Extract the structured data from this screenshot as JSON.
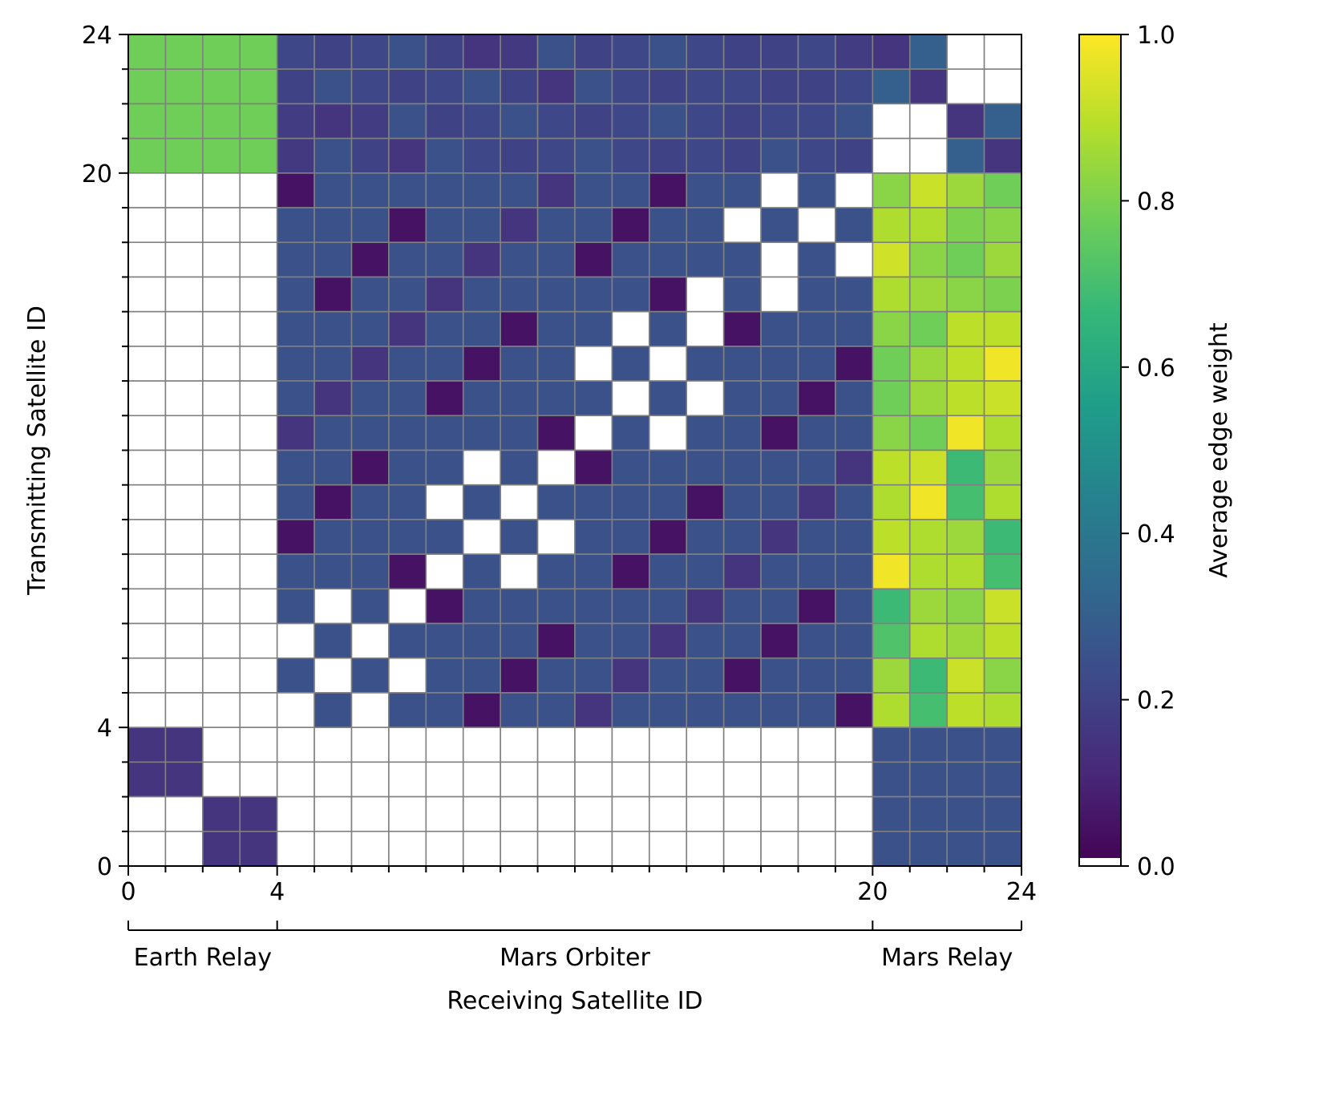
{
  "chart_data": {
    "type": "heatmap",
    "xlabel": "Receiving Satellite ID",
    "ylabel": "Transmitting Satellite ID",
    "colorbar_label": "Average edge weight",
    "colormap": "viridis",
    "missing_color": "#ffffff",
    "grid_color": "#808080",
    "grid": true,
    "xlim": [
      0,
      24
    ],
    "ylim": [
      0,
      24
    ],
    "x_ticks": [
      0,
      4,
      20,
      24
    ],
    "y_ticks": [
      0,
      4,
      20,
      24
    ],
    "colorbar_range": [
      0.0,
      1.0
    ],
    "colorbar_ticks": [
      "0.0",
      "0.2",
      "0.4",
      "0.6",
      "0.8",
      "1.0"
    ],
    "groups": [
      {
        "label": "Earth Relay",
        "start": 0,
        "end": 4
      },
      {
        "label": "Mars Orbiter",
        "start": 4,
        "end": 20
      },
      {
        "label": "Mars Relay",
        "start": 20,
        "end": 24
      }
    ],
    "rows_note": "rows[0] is transmitting ID 23 (top); rows[23] is ID 0 (bottom); null = no link",
    "rows": [
      [
        0.78,
        0.78,
        0.78,
        0.78,
        0.22,
        0.2,
        0.22,
        0.25,
        0.2,
        0.15,
        0.17,
        0.25,
        0.2,
        0.22,
        0.25,
        0.22,
        0.2,
        0.2,
        0.22,
        0.18,
        0.15,
        0.3,
        null,
        null
      ],
      [
        0.78,
        0.78,
        0.78,
        0.78,
        0.2,
        0.25,
        0.22,
        0.2,
        0.22,
        0.25,
        0.2,
        0.15,
        0.25,
        0.22,
        0.2,
        0.22,
        0.22,
        0.2,
        0.2,
        0.22,
        0.3,
        0.15,
        null,
        null
      ],
      [
        0.78,
        0.78,
        0.78,
        0.78,
        0.18,
        0.15,
        0.18,
        0.25,
        0.2,
        0.22,
        0.25,
        0.22,
        0.2,
        0.22,
        0.25,
        0.22,
        0.2,
        0.22,
        0.22,
        0.25,
        null,
        null,
        0.15,
        0.3
      ],
      [
        0.78,
        0.78,
        0.78,
        0.78,
        0.17,
        0.25,
        0.2,
        0.15,
        0.25,
        0.22,
        0.2,
        0.22,
        0.25,
        0.22,
        0.2,
        0.22,
        0.2,
        0.25,
        0.22,
        0.2,
        null,
        null,
        0.3,
        0.15
      ],
      [
        null,
        null,
        null,
        null,
        0.05,
        0.25,
        0.25,
        0.25,
        0.25,
        0.25,
        0.25,
        0.15,
        0.25,
        0.25,
        0.05,
        0.25,
        0.25,
        null,
        0.25,
        null,
        0.82,
        0.92,
        0.85,
        0.78
      ],
      [
        null,
        null,
        null,
        null,
        0.25,
        0.25,
        0.25,
        0.05,
        0.25,
        0.25,
        0.15,
        0.25,
        0.25,
        0.05,
        0.25,
        0.25,
        null,
        0.25,
        null,
        0.25,
        0.88,
        0.88,
        0.8,
        0.82
      ],
      [
        null,
        null,
        null,
        null,
        0.25,
        0.25,
        0.05,
        0.25,
        0.25,
        0.15,
        0.25,
        0.25,
        0.05,
        0.25,
        0.25,
        0.25,
        0.25,
        null,
        0.25,
        null,
        0.93,
        0.82,
        0.78,
        0.85
      ],
      [
        null,
        null,
        null,
        null,
        0.25,
        0.05,
        0.25,
        0.25,
        0.15,
        0.25,
        0.25,
        0.25,
        0.25,
        0.25,
        0.05,
        null,
        0.25,
        null,
        0.25,
        0.25,
        0.88,
        0.85,
        0.82,
        0.8
      ],
      [
        null,
        null,
        null,
        null,
        0.25,
        0.25,
        0.25,
        0.15,
        0.25,
        0.25,
        0.05,
        0.25,
        0.25,
        null,
        0.25,
        null,
        0.05,
        0.25,
        0.25,
        0.25,
        0.82,
        0.78,
        0.9,
        0.9
      ],
      [
        null,
        null,
        null,
        null,
        0.25,
        0.25,
        0.15,
        0.25,
        0.25,
        0.05,
        0.25,
        0.25,
        null,
        0.25,
        null,
        0.25,
        0.25,
        0.25,
        0.25,
        0.05,
        0.78,
        0.85,
        0.9,
        0.98
      ],
      [
        null,
        null,
        null,
        null,
        0.25,
        0.15,
        0.25,
        0.25,
        0.05,
        0.25,
        0.25,
        0.25,
        0.25,
        null,
        0.25,
        null,
        0.25,
        0.25,
        0.05,
        0.25,
        0.78,
        0.85,
        0.9,
        0.92
      ],
      [
        null,
        null,
        null,
        null,
        0.15,
        0.25,
        0.25,
        0.25,
        0.25,
        0.25,
        0.25,
        0.05,
        null,
        0.25,
        null,
        0.25,
        0.25,
        0.05,
        0.25,
        0.25,
        0.82,
        0.78,
        0.98,
        0.88
      ],
      [
        null,
        null,
        null,
        null,
        0.25,
        0.25,
        0.05,
        0.25,
        0.25,
        null,
        0.25,
        null,
        0.05,
        0.25,
        0.25,
        0.25,
        0.25,
        0.25,
        0.25,
        0.15,
        0.9,
        0.92,
        0.68,
        0.85
      ],
      [
        null,
        null,
        null,
        null,
        0.25,
        0.05,
        0.25,
        0.25,
        null,
        0.25,
        null,
        0.25,
        0.25,
        0.25,
        0.25,
        0.05,
        0.25,
        0.25,
        0.15,
        0.25,
        0.88,
        0.98,
        0.7,
        0.88
      ],
      [
        null,
        null,
        null,
        null,
        0.05,
        0.25,
        0.25,
        0.25,
        0.25,
        null,
        0.25,
        null,
        0.25,
        0.25,
        0.05,
        0.25,
        0.25,
        0.15,
        0.25,
        0.25,
        0.9,
        0.88,
        0.85,
        0.68
      ],
      [
        null,
        null,
        null,
        null,
        0.25,
        0.25,
        0.25,
        0.05,
        null,
        0.25,
        null,
        0.25,
        0.25,
        0.05,
        0.25,
        0.25,
        0.15,
        0.25,
        0.25,
        0.25,
        0.98,
        0.88,
        0.88,
        0.7
      ],
      [
        null,
        null,
        null,
        null,
        0.25,
        null,
        0.25,
        null,
        0.05,
        0.25,
        0.25,
        0.25,
        0.25,
        0.25,
        0.25,
        0.15,
        0.25,
        0.25,
        0.05,
        0.25,
        0.68,
        0.85,
        0.82,
        0.92
      ],
      [
        null,
        null,
        null,
        null,
        null,
        0.25,
        null,
        0.25,
        0.25,
        0.25,
        0.25,
        0.05,
        0.25,
        0.25,
        0.15,
        0.25,
        0.25,
        0.05,
        0.25,
        0.25,
        0.72,
        0.88,
        0.85,
        0.9
      ],
      [
        null,
        null,
        null,
        null,
        0.25,
        null,
        0.25,
        null,
        0.25,
        0.25,
        0.05,
        0.25,
        0.25,
        0.15,
        0.25,
        0.25,
        0.05,
        0.25,
        0.25,
        0.25,
        0.85,
        0.68,
        0.92,
        0.82
      ],
      [
        null,
        null,
        null,
        null,
        null,
        0.25,
        null,
        0.25,
        0.25,
        0.05,
        0.25,
        0.25,
        0.15,
        0.25,
        0.25,
        0.25,
        0.25,
        0.25,
        0.25,
        0.05,
        0.88,
        0.7,
        0.9,
        0.88
      ],
      [
        0.15,
        0.15,
        null,
        null,
        null,
        null,
        null,
        null,
        null,
        null,
        null,
        null,
        null,
        null,
        null,
        null,
        null,
        null,
        null,
        null,
        0.25,
        0.25,
        0.25,
        0.25
      ],
      [
        0.15,
        0.15,
        null,
        null,
        null,
        null,
        null,
        null,
        null,
        null,
        null,
        null,
        null,
        null,
        null,
        null,
        null,
        null,
        null,
        null,
        0.25,
        0.25,
        0.25,
        0.25
      ],
      [
        null,
        null,
        0.15,
        0.15,
        null,
        null,
        null,
        null,
        null,
        null,
        null,
        null,
        null,
        null,
        null,
        null,
        null,
        null,
        null,
        null,
        0.25,
        0.25,
        0.25,
        0.25
      ],
      [
        null,
        null,
        0.15,
        0.15,
        null,
        null,
        null,
        null,
        null,
        null,
        null,
        null,
        null,
        null,
        null,
        null,
        null,
        null,
        null,
        null,
        0.25,
        0.25,
        0.25,
        0.25
      ]
    ]
  }
}
